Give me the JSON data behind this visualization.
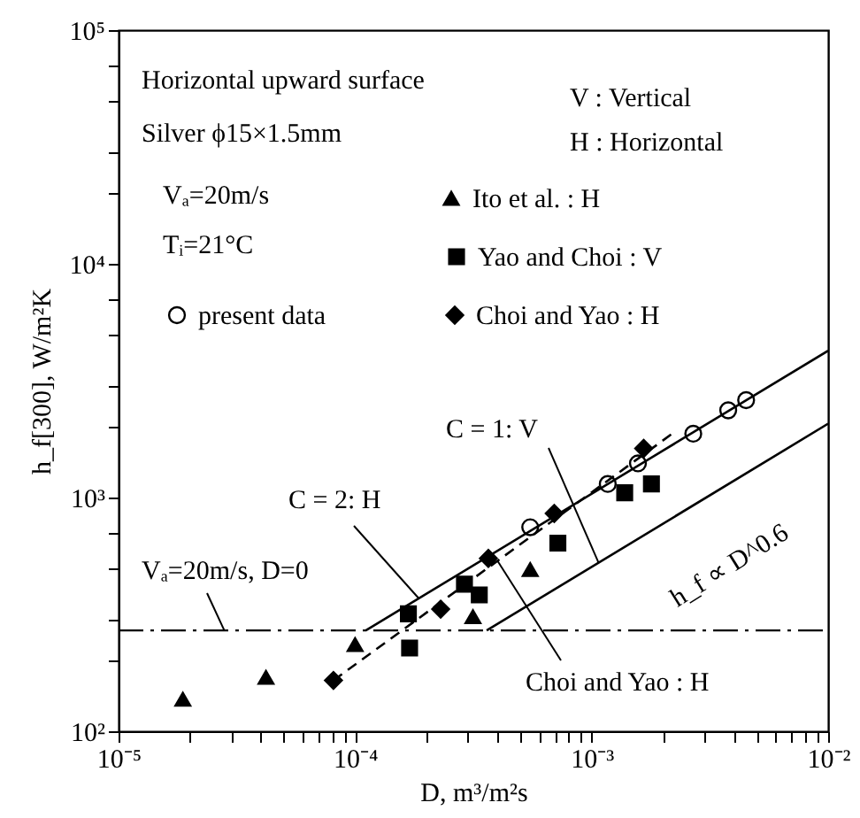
{
  "chart_data": {
    "type": "scatter",
    "xlabel": "D, m³/m²s",
    "ylabel": "h_f[300], W/m²K",
    "log": "xy",
    "grid": false,
    "legend": "top",
    "xlim": [
      1e-05,
      0.01
    ],
    "ylim": [
      100,
      100000
    ],
    "xticks": [
      {
        "value": 1e-05,
        "label": "10⁻⁵"
      },
      {
        "value": 2e-05,
        "label": null
      },
      {
        "value": 3e-05,
        "label": null
      },
      {
        "value": 4e-05,
        "label": null
      },
      {
        "value": 5e-05,
        "label": null
      },
      {
        "value": 6e-05,
        "label": null
      },
      {
        "value": 7e-05,
        "label": null
      },
      {
        "value": 8e-05,
        "label": null
      },
      {
        "value": 9e-05,
        "label": null
      },
      {
        "value": 0.0001,
        "label": "10⁻⁴"
      },
      {
        "value": 0.0002,
        "label": null
      },
      {
        "value": 0.0003,
        "label": null
      },
      {
        "value": 0.0004,
        "label": null
      },
      {
        "value": 0.0005,
        "label": null
      },
      {
        "value": 0.0006,
        "label": null
      },
      {
        "value": 0.0007,
        "label": null
      },
      {
        "value": 0.0008,
        "label": null
      },
      {
        "value": 0.0009,
        "label": null
      },
      {
        "value": 0.001,
        "label": "10⁻³"
      },
      {
        "value": 0.002,
        "label": null
      },
      {
        "value": 0.003,
        "label": null
      },
      {
        "value": 0.004,
        "label": null
      },
      {
        "value": 0.005,
        "label": null
      },
      {
        "value": 0.006,
        "label": null
      },
      {
        "value": 0.007,
        "label": null
      },
      {
        "value": 0.008,
        "label": null
      },
      {
        "value": 0.009,
        "label": null
      },
      {
        "value": 0.01,
        "label": "10⁻²"
      }
    ],
    "yticks": [
      {
        "value": 100,
        "label": "10²"
      },
      {
        "value": 200,
        "label": null
      },
      {
        "value": 300,
        "label": null
      },
      {
        "value": 500,
        "label": null
      },
      {
        "value": 700,
        "label": null
      },
      {
        "value": 1000,
        "label": "10³"
      },
      {
        "value": 2000,
        "label": null
      },
      {
        "value": 3000,
        "label": null
      },
      {
        "value": 5000,
        "label": null
      },
      {
        "value": 7000,
        "label": null
      },
      {
        "value": 10000,
        "label": "10⁴"
      },
      {
        "value": 20000,
        "label": null
      },
      {
        "value": 30000,
        "label": null
      },
      {
        "value": 50000,
        "label": null
      },
      {
        "value": 70000,
        "label": null
      },
      {
        "value": 100000,
        "label": "10⁵"
      }
    ],
    "series": [
      {
        "name": "Ito et al. : H",
        "color": "#000000",
        "marker": "triangle",
        "x": [
          1.87e-05,
          4.2e-05,
          0.0001,
          0.000315,
          0.00055
        ],
        "values": [
          137,
          170,
          235,
          309,
          492
        ]
      },
      {
        "name": "Yao and Choi : V",
        "color": "#000000",
        "marker": "square",
        "x": [
          0.000168,
          0.00017,
          0.00029,
          0.000335,
          0.00072,
          0.00138,
          0.00179
        ],
        "values": [
          318,
          227,
          426,
          383,
          638,
          1048,
          1143
        ]
      },
      {
        "name": "Choi and Yao : H",
        "color": "#000000",
        "marker": "diamond",
        "x": [
          8.1e-05,
          0.00023,
          0.000366,
          0.000695,
          0.00166
        ],
        "values": [
          165,
          333,
          549,
          855,
          1622
        ]
      },
      {
        "name": "present data",
        "color": "#ffffff",
        "marker": "circle",
        "x": [
          0.00055,
          0.00117,
          0.00157,
          0.00269,
          0.00378,
          0.0045
        ],
        "values": [
          746,
          1143,
          1400,
          1875,
          2361,
          2610
        ]
      },
      {
        "type": "line",
        "color": "#000000",
        "line_style": "solid",
        "marker": "none",
        "x": [
          0.000111,
          0.01
        ],
        "values": [
          270,
          4250
        ]
      },
      {
        "type": "line",
        "color": "#000000",
        "line_style": "solid",
        "marker": "none",
        "x": [
          0.00036,
          0.01
        ],
        "values": [
          270,
          2070
        ]
      },
      {
        "type": "line",
        "color": "#000000",
        "line_style": "dashed",
        "marker": "none",
        "x": [
          8.1e-05,
          0.00219
        ],
        "values": [
          165,
          1875
        ]
      }
    ],
    "ref_lines": [
      {
        "axis": "y",
        "value": 270,
        "color": "#000000",
        "line_style": "dashed"
      }
    ],
    "annotations": [
      "Horizontal upward surface",
      "Silver ϕ15×1.5mm",
      "V : Vertical",
      "H : Horizontal",
      "Vₐ=20m/s",
      "Tᵢ=21°C",
      {
        "text": "C = 2: H",
        "x": 0.000186,
        "y": 370
      },
      {
        "text": "C = 1: V",
        "x": 0.00107,
        "y": 526
      },
      {
        "text": "Choi and Yao : H",
        "x": 0.0004,
        "y": 536
      },
      "h_f ∝ D^0.6",
      {
        "text": "Vₐ=20m/s, D=0",
        "x": 2.8e-05,
        "y": 270
      }
    ]
  }
}
